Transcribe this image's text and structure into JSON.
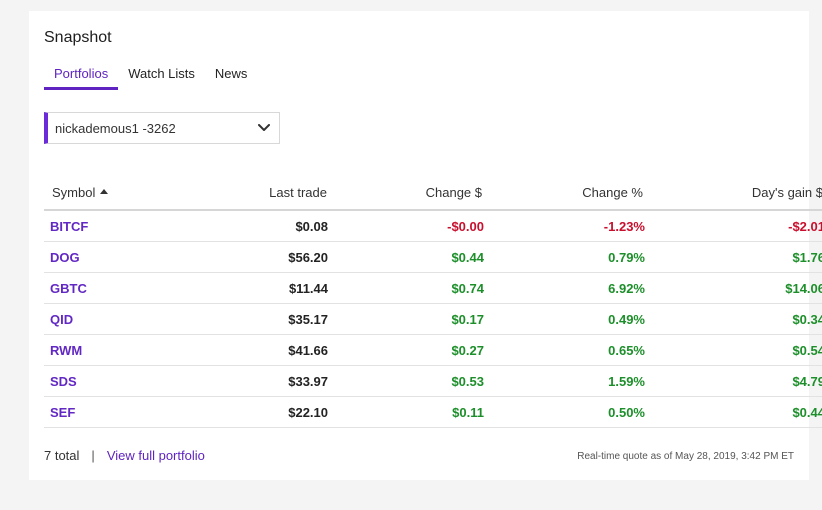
{
  "snapshot": {
    "title": "Snapshot",
    "tabs": [
      {
        "label": "Portfolios",
        "active": true
      },
      {
        "label": "Watch Lists",
        "active": false
      },
      {
        "label": "News",
        "active": false
      }
    ],
    "account_select": {
      "value": "nickademous1 -3262",
      "icon": "chevron-down-icon"
    },
    "table": {
      "headers": {
        "symbol": "Symbol",
        "last_trade": "Last trade",
        "change_dollar": "Change $",
        "change_pct": "Change %",
        "days_gain": "Day's gain $"
      },
      "sort": {
        "column": "symbol",
        "direction": "ascending",
        "icon": "sort-up-icon"
      },
      "rows": [
        {
          "symbol": "BITCF",
          "last_trade": "$0.08",
          "change_dollar": "-$0.00",
          "change_pct": "-1.23%",
          "days_gain": "-$2.01",
          "direction": "neg"
        },
        {
          "symbol": "DOG",
          "last_trade": "$56.20",
          "change_dollar": "$0.44",
          "change_pct": "0.79%",
          "days_gain": "$1.76",
          "direction": "pos"
        },
        {
          "symbol": "GBTC",
          "last_trade": "$11.44",
          "change_dollar": "$0.74",
          "change_pct": "6.92%",
          "days_gain": "$14.06",
          "direction": "pos"
        },
        {
          "symbol": "QID",
          "last_trade": "$35.17",
          "change_dollar": "$0.17",
          "change_pct": "0.49%",
          "days_gain": "$0.34",
          "direction": "pos"
        },
        {
          "symbol": "RWM",
          "last_trade": "$41.66",
          "change_dollar": "$0.27",
          "change_pct": "0.65%",
          "days_gain": "$0.54",
          "direction": "pos"
        },
        {
          "symbol": "SDS",
          "last_trade": "$33.97",
          "change_dollar": "$0.53",
          "change_pct": "1.59%",
          "days_gain": "$4.79",
          "direction": "pos"
        },
        {
          "symbol": "SEF",
          "last_trade": "$22.10",
          "change_dollar": "$0.11",
          "change_pct": "0.50%",
          "days_gain": "$0.44",
          "direction": "pos"
        }
      ]
    },
    "footer": {
      "total": "7 total",
      "separator": "|",
      "view_full_portfolio": "View full portfolio",
      "quote_note": "Real-time quote as of May 28, 2019, 3:42 PM ET"
    },
    "colors": {
      "accent": "#5f23c2",
      "positive": "#1d8f2a",
      "negative": "#c8102e"
    }
  }
}
